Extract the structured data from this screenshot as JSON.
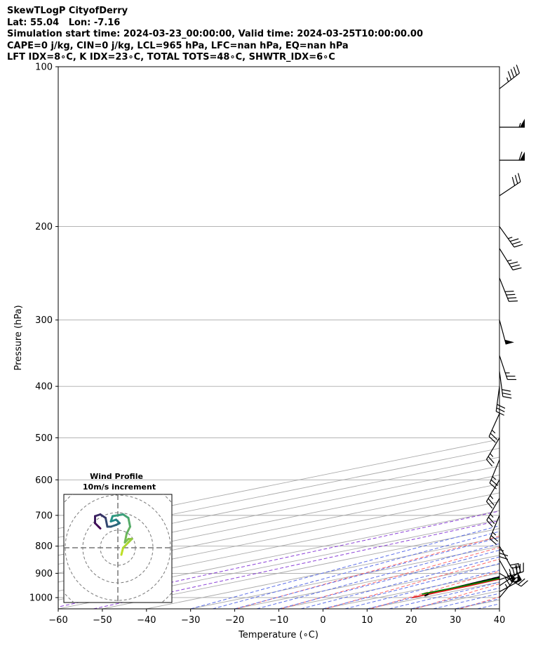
{
  "header": {
    "line1": "SkewTLogP CityofDerry",
    "line2": "Lat: 55.04   Lon: -7.16",
    "line3": "Simulation start time: 2024-03-23_00:00:00, Valid time: 2024-03-25T10:00:00.00",
    "line4": "CAPE=0 j/kg, CIN=0 j/kg, LCL=965 hPa, LFC=nan hPa, EQ=nan hPa",
    "line5": "LFT IDX=8∘C, K IDX=23∘C, TOTAL TOTS=48∘C, SHWTR_IDX=6∘C"
  },
  "chart_data": {
    "type": "line",
    "subtype": "skew-t log-p",
    "xlabel": "Temperature (∘C)",
    "ylabel": "Pressure (hPa)",
    "xlim": [
      -60,
      40
    ],
    "ylim": [
      1050,
      100
    ],
    "y_scale": "log",
    "grid": true,
    "x_ticks": [
      -60,
      -50,
      -40,
      -30,
      -20,
      -10,
      0,
      10,
      20,
      30,
      40
    ],
    "x_tick_labels": [
      "−60",
      "−50",
      "−40",
      "−30",
      "−20",
      "−10",
      "0",
      "10",
      "20",
      "30",
      "40"
    ],
    "y_ticks": [
      1000,
      900,
      800,
      700,
      600,
      500,
      400,
      300,
      200,
      100
    ],
    "y_tick_labels": [
      "1000",
      "900",
      "800",
      "700",
      "600",
      "500",
      "400",
      "300",
      "200",
      "100"
    ],
    "series": [
      {
        "key": "temperature",
        "color": "#e31a1c",
        "points": [
          [
            1000,
            7.6
          ],
          [
            975,
            7.4
          ],
          [
            950,
            7.3
          ],
          [
            925,
            6.7
          ],
          [
            900,
            6.6
          ],
          [
            850,
            6.2
          ],
          [
            800,
            5.3
          ],
          [
            750,
            4.6
          ],
          [
            700,
            3.4
          ],
          [
            650,
            2.2
          ],
          [
            600,
            0.4
          ],
          [
            550,
            -1.4
          ],
          [
            500,
            -3.4
          ],
          [
            450,
            -6.4
          ],
          [
            400,
            -10.4
          ],
          [
            350,
            -14.4
          ],
          [
            320,
            -17.8
          ],
          [
            300,
            -18.0
          ],
          [
            280,
            -16.7
          ],
          [
            260,
            -14.6
          ],
          [
            250,
            -12.9
          ],
          [
            235,
            -8.5
          ],
          [
            220,
            -5.0
          ],
          [
            200,
            -1.5
          ],
          [
            170,
            5.8
          ],
          [
            160,
            6.2
          ],
          [
            150,
            8.0
          ],
          [
            140,
            10.0
          ],
          [
            130,
            10.5
          ],
          [
            120,
            11.0
          ],
          [
            110,
            11.2
          ],
          [
            100,
            12.1
          ]
        ]
      },
      {
        "key": "dewpoint",
        "color": "#008000",
        "points": [
          [
            985,
            5.9
          ],
          [
            950,
            6.1
          ],
          [
            900,
            5.6
          ],
          [
            850,
            5.0
          ],
          [
            800,
            4.2
          ],
          [
            750,
            3.1
          ],
          [
            700,
            1.6
          ],
          [
            650,
            -0.2
          ],
          [
            600,
            -2.5
          ],
          [
            550,
            -4.6
          ],
          [
            500,
            -7.4
          ],
          [
            450,
            -10.6
          ],
          [
            400,
            -14.6
          ],
          [
            350,
            -19.4
          ],
          [
            330,
            -22.1
          ],
          [
            310,
            -23.8
          ],
          [
            300,
            -24.0
          ],
          [
            270,
            -24.1
          ],
          [
            250,
            -28.5
          ],
          [
            220,
            -33.8
          ],
          [
            200,
            -36.4
          ],
          [
            180,
            -37.7
          ],
          [
            170,
            -36.7
          ],
          [
            160,
            -35.8
          ],
          [
            150,
            -33.8
          ],
          [
            140,
            -32.3
          ],
          [
            120,
            -29.0
          ],
          [
            110,
            -27.0
          ],
          [
            100,
            -25.9
          ]
        ]
      },
      {
        "key": "parcel",
        "color": "#000000",
        "points": [
          [
            985,
            7.4
          ],
          [
            965,
            6.4
          ],
          [
            900,
            3.8
          ],
          [
            800,
            -0.8
          ],
          [
            700,
            -6.5
          ],
          [
            600,
            -13.4
          ],
          [
            500,
            -22.6
          ],
          [
            400,
            -34.5
          ],
          [
            300,
            -51.0
          ],
          [
            200,
            -73.6
          ],
          [
            100,
            -109.0
          ]
        ]
      }
    ],
    "cape_shading_color": "#a2c6e0",
    "isotherm_color": "#aaaaaa",
    "dry_adiabat_color": "#ff6666",
    "moist_adiabat_color": "#5b6ee8",
    "mixing_ratio_color": "#8a3fd6",
    "wind_barbs": [
      {
        "p": 1000,
        "u": -25,
        "v": -30
      },
      {
        "p": 975,
        "u": -22,
        "v": -12
      },
      {
        "p": 950,
        "u": -18,
        "v": -12
      },
      {
        "p": 925,
        "u": -15,
        "v": -5
      },
      {
        "p": 900,
        "u": -10,
        "v": 6
      },
      {
        "p": 850,
        "u": -8,
        "v": 14
      },
      {
        "p": 800,
        "u": -5,
        "v": 9
      },
      {
        "p": 750,
        "u": 0,
        "v": 14
      },
      {
        "p": 700,
        "u": 5,
        "v": 12
      },
      {
        "p": 650,
        "u": 7,
        "v": 12
      },
      {
        "p": 600,
        "u": 6,
        "v": 10
      },
      {
        "p": 550,
        "u": 5,
        "v": 12
      },
      {
        "p": 500,
        "u": 6,
        "v": 10
      },
      {
        "p": 450,
        "u": 5,
        "v": 11
      },
      {
        "p": 400,
        "u": 2,
        "v": 15
      },
      {
        "p": 375,
        "u": -2,
        "v": 15
      },
      {
        "p": 350,
        "u": -4,
        "v": 12
      },
      {
        "p": 300,
        "u": -7,
        "v": 26
      },
      {
        "p": 250,
        "u": -8,
        "v": 20
      },
      {
        "p": 220,
        "u": -10,
        "v": 16
      },
      {
        "p": 200,
        "u": -10,
        "v": 14
      },
      {
        "p": 175,
        "u": -12,
        "v": -8
      },
      {
        "p": 150,
        "u": -30,
        "v": 0
      },
      {
        "p": 130,
        "u": -28,
        "v": 0
      },
      {
        "p": 110,
        "u": -18,
        "v": -14
      }
    ],
    "hodograph": {
      "title_line1": "Wind Profile",
      "title_line2": "10m/s increment",
      "ring_step": 10,
      "rings": 4,
      "path_start_color": "#440154",
      "path_end_color": "#bddf26",
      "points": [
        [
          2,
          -4
        ],
        [
          3,
          0
        ],
        [
          6,
          3
        ],
        [
          8,
          5
        ],
        [
          6,
          5
        ],
        [
          4,
          3
        ],
        [
          5,
          8
        ],
        [
          7,
          12
        ],
        [
          6,
          17
        ],
        [
          3,
          19
        ],
        [
          -3,
          18
        ],
        [
          -4,
          15
        ],
        [
          -1,
          16
        ],
        [
          1,
          14
        ],
        [
          -1,
          13
        ],
        [
          -4,
          12
        ],
        [
          -6,
          12
        ],
        [
          -7,
          17
        ],
        [
          -10,
          19
        ],
        [
          -13,
          18
        ],
        [
          -13,
          14
        ],
        [
          -11,
          12
        ],
        [
          -10,
          11
        ]
      ]
    }
  }
}
